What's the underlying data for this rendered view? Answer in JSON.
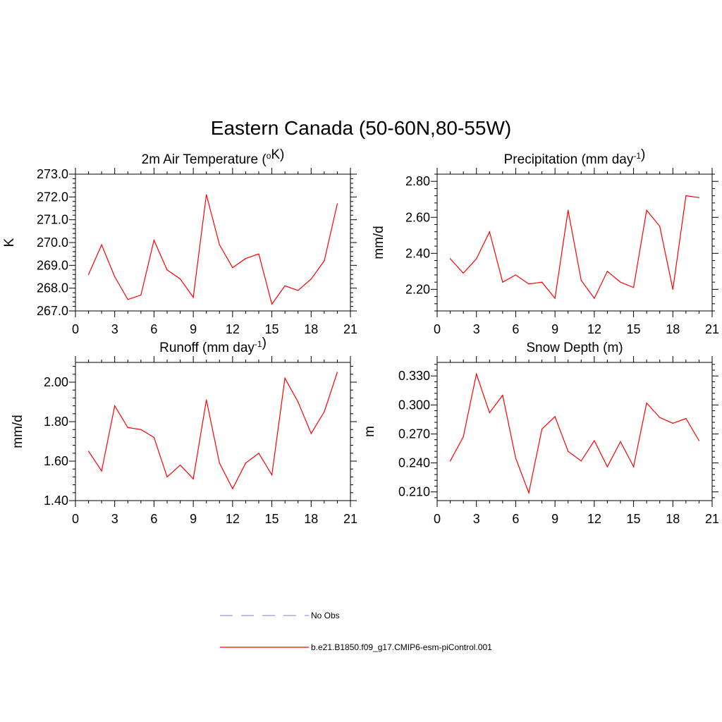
{
  "figure": {
    "title": "Eastern Canada (50-60N,80-55W)"
  },
  "chart_data": [
    {
      "type": "line",
      "title": "2m Air Temperature (°K)",
      "title_parts": [
        {
          "text": "2m Air Temperature ("
        },
        {
          "text": "o",
          "sup": true
        },
        {
          "text": "K)"
        }
      ],
      "xlabel": "",
      "ylabel": "K",
      "xlim": [
        0,
        21
      ],
      "ylim": [
        267.0,
        273.0
      ],
      "xticks": [
        0,
        3,
        6,
        9,
        12,
        15,
        18,
        21
      ],
      "yticks": [
        "267.0",
        "268.0",
        "269.0",
        "270.0",
        "271.0",
        "272.0",
        "273.0"
      ],
      "x": [
        1,
        2,
        3,
        4,
        5,
        6,
        7,
        8,
        9,
        10,
        11,
        12,
        13,
        14,
        15,
        16,
        17,
        18,
        19,
        20
      ],
      "series": [
        {
          "name": "b.e21.B1850.f09_g17.CMIP6-esm-piControl.001",
          "values": [
            268.6,
            269.9,
            268.5,
            267.5,
            267.7,
            270.1,
            268.8,
            268.4,
            267.6,
            272.1,
            269.9,
            268.9,
            269.3,
            269.5,
            267.3,
            268.1,
            267.9,
            268.4,
            269.2,
            271.7
          ]
        }
      ]
    },
    {
      "type": "line",
      "title": "Precipitation (mm day-1)",
      "title_parts": [
        {
          "text": "Precipitation (mm day"
        },
        {
          "text": "-1",
          "sup": true
        },
        {
          "text": ")"
        }
      ],
      "xlabel": "",
      "ylabel": "mm/d",
      "xlim": [
        0,
        21
      ],
      "ylim": [
        2.08,
        2.84
      ],
      "xticks": [
        0,
        3,
        6,
        9,
        12,
        15,
        18,
        21
      ],
      "yticks": [
        "2.20",
        "2.40",
        "2.60",
        "2.80"
      ],
      "x": [
        1,
        2,
        3,
        4,
        5,
        6,
        7,
        8,
        9,
        10,
        11,
        12,
        13,
        14,
        15,
        16,
        17,
        18,
        19,
        20
      ],
      "series": [
        {
          "name": "b.e21.B1850.f09_g17.CMIP6-esm-piControl.001",
          "values": [
            2.37,
            2.29,
            2.37,
            2.52,
            2.24,
            2.28,
            2.23,
            2.24,
            2.15,
            2.64,
            2.25,
            2.15,
            2.3,
            2.24,
            2.21,
            2.64,
            2.55,
            2.2,
            2.72,
            2.71
          ]
        }
      ]
    },
    {
      "type": "line",
      "title": "Runoff (mm day-1)",
      "title_parts": [
        {
          "text": "Runoff (mm day"
        },
        {
          "text": "-1",
          "sup": true
        },
        {
          "text": ")"
        }
      ],
      "xlabel": "",
      "ylabel": "mm/d",
      "xlim": [
        0,
        21
      ],
      "ylim": [
        1.4,
        2.1
      ],
      "xticks": [
        0,
        3,
        6,
        9,
        12,
        15,
        18,
        21
      ],
      "yticks": [
        "1.40",
        "1.60",
        "1.80",
        "2.00"
      ],
      "x": [
        1,
        2,
        3,
        4,
        5,
        6,
        7,
        8,
        9,
        10,
        11,
        12,
        13,
        14,
        15,
        16,
        17,
        18,
        19,
        20
      ],
      "series": [
        {
          "name": "b.e21.B1850.f09_g17.CMIP6-esm-piControl.001",
          "values": [
            1.65,
            1.55,
            1.88,
            1.77,
            1.76,
            1.72,
            1.52,
            1.58,
            1.51,
            1.91,
            1.59,
            1.46,
            1.59,
            1.64,
            1.53,
            2.02,
            1.9,
            1.74,
            1.85,
            2.05
          ]
        }
      ]
    },
    {
      "type": "line",
      "title": "Snow Depth (m)",
      "title_parts": [
        {
          "text": "Snow Depth (m)"
        }
      ],
      "xlabel": "",
      "ylabel": "m",
      "xlim": [
        0,
        21
      ],
      "ylim": [
        0.201,
        0.344
      ],
      "xticks": [
        0,
        3,
        6,
        9,
        12,
        15,
        18,
        21
      ],
      "yticks": [
        "0.210",
        "0.240",
        "0.270",
        "0.300",
        "0.330"
      ],
      "x": [
        1,
        2,
        3,
        4,
        5,
        6,
        7,
        8,
        9,
        10,
        11,
        12,
        13,
        14,
        15,
        16,
        17,
        18,
        19,
        20
      ],
      "series": [
        {
          "name": "b.e21.B1850.f09_g17.CMIP6-esm-piControl.001",
          "values": [
            0.242,
            0.267,
            0.332,
            0.292,
            0.31,
            0.245,
            0.209,
            0.275,
            0.288,
            0.252,
            0.242,
            0.263,
            0.236,
            0.262,
            0.236,
            0.302,
            0.287,
            0.281,
            0.286,
            0.263
          ]
        }
      ]
    }
  ],
  "legend": {
    "entries": [
      {
        "label": "No Obs",
        "color": "#9999dd",
        "dash": true
      },
      {
        "label": "b.e21.B1850.f09_g17.CMIP6-esm-piControl.001",
        "color": "#ff0000",
        "dash": false
      }
    ]
  },
  "colors": {
    "series": "#ff0000",
    "axis": "#000000"
  }
}
